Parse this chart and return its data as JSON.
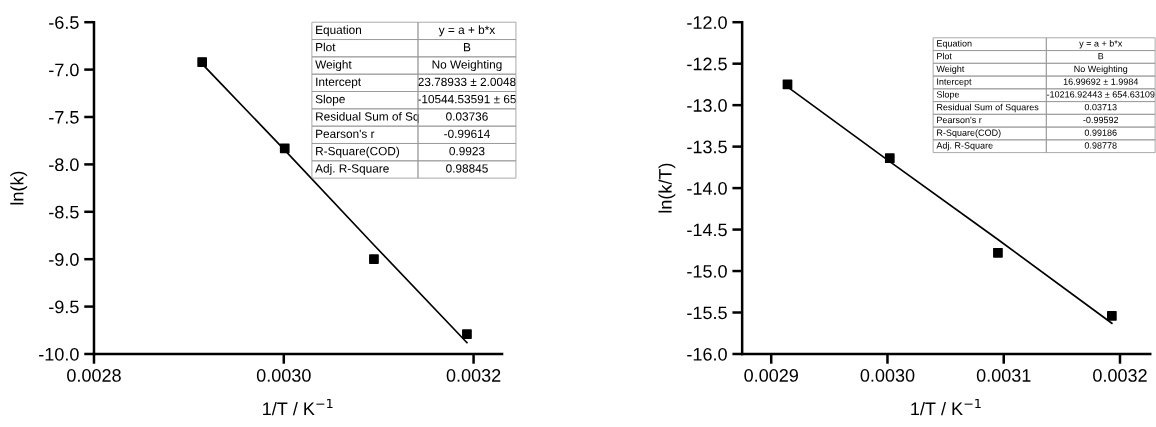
{
  "chart_data": [
    {
      "type": "scatter",
      "xlabel": "1/T / K$^{−1}$",
      "ylabel": "ln(k)",
      "x": [
        0.002914,
        0.003001,
        0.003095,
        0.003193
      ],
      "series": [
        {
          "type": "scatter",
          "color": "#000000",
          "marker": "square",
          "values": [
            -6.92,
            -7.83,
            -9.0,
            -9.79
          ]
        },
        {
          "type": "line",
          "color": "#000000",
          "line_style": "solid",
          "marker": "none",
          "values": [
            -6.94,
            -7.85,
            -8.85,
            -9.88
          ]
        }
      ],
      "xlim": [
        0.0028,
        0.00323
      ],
      "ylim": [
        -10.0,
        -6.5
      ],
      "xticks": [
        0.0028,
        {
          "value": 0.003,
          "label": "0.0030"
        },
        0.0032
      ],
      "yticks": [
        {
          "value": -10.0,
          "label": "-10.0"
        },
        {
          "value": -9.5,
          "label": "-9.5"
        },
        {
          "value": -9.0,
          "label": "-9.0"
        },
        {
          "value": -8.5,
          "label": "-8.5"
        },
        {
          "value": -8.0,
          "label": "-8.0"
        },
        {
          "value": -7.5,
          "label": "-7.5"
        },
        {
          "value": -7.0,
          "label": "-7.0"
        },
        {
          "value": -6.5,
          "label": "-6.5"
        }
      ],
      "grid": false,
      "legend": false,
      "annotations": [
        "Equation",
        "y = a + b*x",
        "Plot",
        "B",
        "Weight",
        "No Weighting",
        "Intercept",
        "23.78933 ± 2.0048",
        "Slope",
        "-10544.53591 ± 65",
        "Residual Sum of Sq",
        "0.03736",
        "Pearson's r",
        "-0.99614",
        "R-Square(COD)",
        "0.9923",
        "Adj. R-Square",
        "0.98845"
      ]
    },
    {
      "type": "scatter",
      "xlabel": "1/T / K$^{−1}$",
      "ylabel": "ln(k/T)",
      "x": [
        0.002914,
        0.003002,
        0.003095,
        0.003193
      ],
      "series": [
        {
          "type": "scatter",
          "color": "#000000",
          "marker": "square",
          "values": [
            -12.75,
            -13.64,
            -14.78,
            -15.54
          ]
        },
        {
          "type": "line",
          "color": "#000000",
          "line_style": "solid",
          "marker": "none",
          "values": [
            -12.78,
            -13.68,
            -14.62,
            -15.63
          ]
        }
      ],
      "xlim": [
        0.002875,
        0.003226
      ],
      "ylim": [
        -16.0,
        -12.0
      ],
      "xticks": [
        0.0029,
        {
          "value": 0.003,
          "label": "0.0030"
        },
        0.0031,
        0.0032
      ],
      "yticks": [
        {
          "value": -16.0,
          "label": "-16.0"
        },
        {
          "value": -15.5,
          "label": "-15.5"
        },
        {
          "value": -15.0,
          "label": "-15.0"
        },
        {
          "value": -14.5,
          "label": "-14.5"
        },
        {
          "value": -14.0,
          "label": "-14.0"
        },
        {
          "value": -13.5,
          "label": "-13.5"
        },
        {
          "value": -13.0,
          "label": "-13.0"
        },
        {
          "value": -12.5,
          "label": "-12.5"
        },
        {
          "value": -12.0,
          "label": "-12.0"
        }
      ],
      "grid": false,
      "legend": false,
      "annotations": [
        "Equation",
        "y = a + b*x",
        "Plot",
        "B",
        "Weight",
        "No Weighting",
        "Intercept",
        "16.99692 ± 1.9984",
        "Slope",
        "-10216.92443 ± 654.63109",
        "Residual Sum of Squares",
        "0.03713",
        "Pearson's r",
        "-0.99592",
        "R-Square(COD)",
        "0.99186",
        "Adj. R-Square",
        "0.98778"
      ]
    }
  ]
}
